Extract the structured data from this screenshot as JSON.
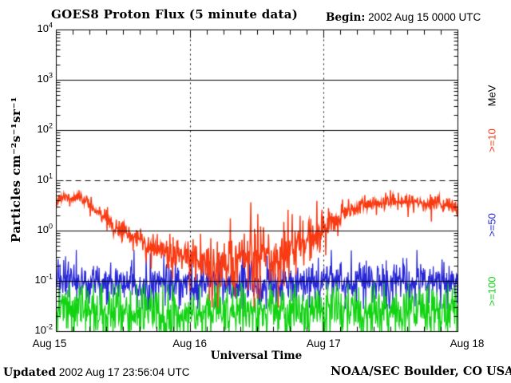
{
  "header": {
    "begin_label": "Begin:",
    "begin_value": "2002 Aug 15 0000 UTC"
  },
  "footer": {
    "updated_label": "Updated",
    "updated_value": "2002 Aug 17 23:56:04 UTC",
    "credit": "NOAA/SEC Boulder, CO USA"
  },
  "chart_data": {
    "type": "line",
    "title": "GOES8 Proton Flux (5 minute data)",
    "xlabel": "Universal Time",
    "ylabel": "Particles cm⁻²s⁻¹sr⁻¹",
    "legend_title": "MeV",
    "background": "#ffffff",
    "axis_color": "#000000",
    "ylim": [
      0.01,
      10000
    ],
    "y_scale": "log",
    "xlim_days": [
      0,
      3
    ],
    "x_start": "2002 Aug 15 0000 UTC",
    "minor_tick_hours": 3,
    "solid_gridlines": [
      1000,
      100,
      1,
      0.1
    ],
    "dashed_gridline": 10,
    "day_gridlines": [
      1,
      2
    ],
    "x_ticks": [
      {
        "label": "Aug 15",
        "day": 0
      },
      {
        "label": "Aug 16",
        "day": 1
      },
      {
        "label": "Aug 17",
        "day": 2
      },
      {
        "label": "Aug 18",
        "day": 3
      }
    ],
    "y_ticks": [
      {
        "v": 10000,
        "base": "10",
        "exp": "4"
      },
      {
        "v": 1000,
        "base": "10",
        "exp": "3"
      },
      {
        "v": 100,
        "base": "10",
        "exp": "2"
      },
      {
        "v": 10,
        "base": "10",
        "exp": "1"
      },
      {
        "v": 1,
        "base": "10",
        "exp": "0"
      },
      {
        "v": 0.1,
        "base": "10",
        "exp": "-1"
      },
      {
        "v": 0.01,
        "base": "10",
        "exp": "-2"
      }
    ],
    "series": [
      {
        "name": ">=10",
        "energy_mev": 10,
        "color": "#f93b14",
        "points": 864,
        "seed": 11,
        "tail": 0.06,
        "clamp": [
          0.03,
          6.5
        ],
        "line_width": 1.5,
        "keypoints": [
          [
            0.0,
            4.2
          ],
          [
            0.06,
            4.7
          ],
          [
            0.12,
            4.4
          ],
          [
            0.16,
            5.1
          ],
          [
            0.2,
            4.4
          ],
          [
            0.27,
            3.0
          ],
          [
            0.33,
            2.2
          ],
          [
            0.4,
            1.5
          ],
          [
            0.48,
            1.0
          ],
          [
            0.58,
            0.7
          ],
          [
            0.7,
            0.5
          ],
          [
            0.85,
            0.36
          ],
          [
            1.0,
            0.3
          ],
          [
            1.15,
            0.22
          ],
          [
            1.3,
            0.2
          ],
          [
            1.45,
            0.3
          ],
          [
            1.6,
            0.28
          ],
          [
            1.75,
            0.42
          ],
          [
            1.88,
            0.65
          ],
          [
            1.97,
            0.95
          ],
          [
            2.05,
            1.45
          ],
          [
            2.15,
            2.3
          ],
          [
            2.25,
            3.0
          ],
          [
            2.4,
            3.4
          ],
          [
            2.55,
            3.8
          ],
          [
            2.65,
            4.0
          ],
          [
            2.75,
            3.5
          ],
          [
            2.85,
            3.8
          ],
          [
            2.95,
            3.0
          ],
          [
            3.0,
            2.7
          ]
        ],
        "noise_dex_keypoints": [
          [
            0.0,
            0.04
          ],
          [
            0.2,
            0.05
          ],
          [
            0.35,
            0.08
          ],
          [
            0.6,
            0.13
          ],
          [
            0.8,
            0.18
          ],
          [
            1.0,
            0.22
          ],
          [
            1.2,
            0.27
          ],
          [
            1.7,
            0.27
          ],
          [
            1.9,
            0.22
          ],
          [
            2.0,
            0.15
          ],
          [
            2.15,
            0.09
          ],
          [
            2.3,
            0.07
          ],
          [
            3.0,
            0.065
          ]
        ]
      },
      {
        "name": ">=50",
        "energy_mev": 50,
        "color": "#2626d8",
        "points": 864,
        "seed": 23,
        "tail": 0.07,
        "clamp": [
          0.028,
          0.42
        ],
        "line_width": 1.25,
        "keypoints": [
          [
            0.0,
            0.095
          ],
          [
            0.6,
            0.09
          ],
          [
            1.2,
            0.082
          ],
          [
            1.8,
            0.085
          ],
          [
            2.4,
            0.095
          ],
          [
            3.0,
            0.09
          ]
        ],
        "noise_dex_keypoints": [
          [
            0.0,
            0.2
          ],
          [
            3.0,
            0.2
          ]
        ]
      },
      {
        "name": ">=100",
        "energy_mev": 100,
        "color": "#12d312",
        "points": 864,
        "seed": 5,
        "tail": 0.07,
        "clamp": [
          0.004,
          0.09
        ],
        "line_width": 1.25,
        "keypoints": [
          [
            0.0,
            0.027
          ],
          [
            0.8,
            0.024
          ],
          [
            1.6,
            0.025
          ],
          [
            2.4,
            0.027
          ],
          [
            3.0,
            0.026
          ]
        ],
        "noise_dex_keypoints": [
          [
            0.0,
            0.26
          ],
          [
            3.0,
            0.26
          ]
        ]
      }
    ]
  }
}
